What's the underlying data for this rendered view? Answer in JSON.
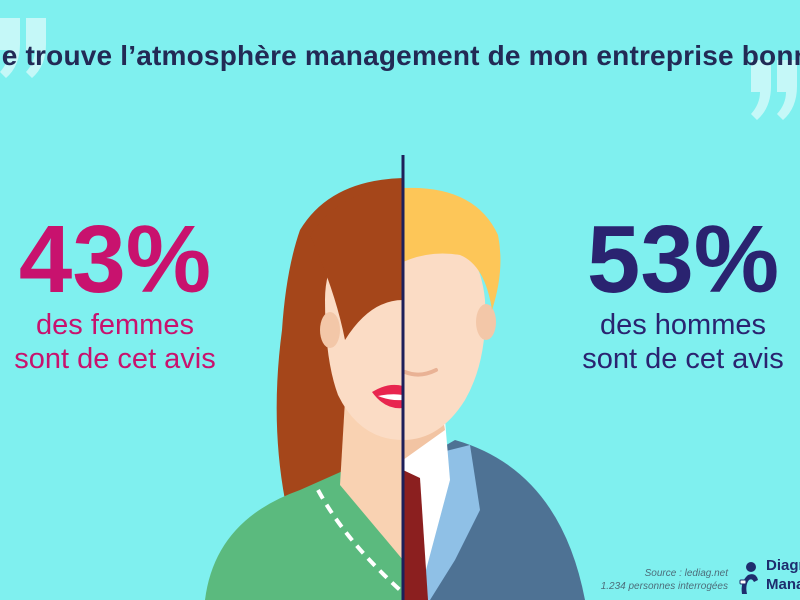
{
  "headline": "Je trouve l’atmosphère management de mon entreprise bonne",
  "women": {
    "value": "43%",
    "line1": "des femmes",
    "line2": "sont de cet avis"
  },
  "men": {
    "value": "53%",
    "line1": "des hommes",
    "line2": "sont de cet avis"
  },
  "source": {
    "line1": "Source : lediag.net",
    "line2": "1.234 personnes interrogées"
  },
  "logo": {
    "line1": "Diagnostic",
    "line2": "Management"
  },
  "colors": {
    "background": "#7ff0ef",
    "women_accent": "#c8126e",
    "men_accent": "#2a2370",
    "headline": "#222a55"
  },
  "icons": [
    "open-quote-icon",
    "close-quote-icon",
    "logo-icon"
  ]
}
